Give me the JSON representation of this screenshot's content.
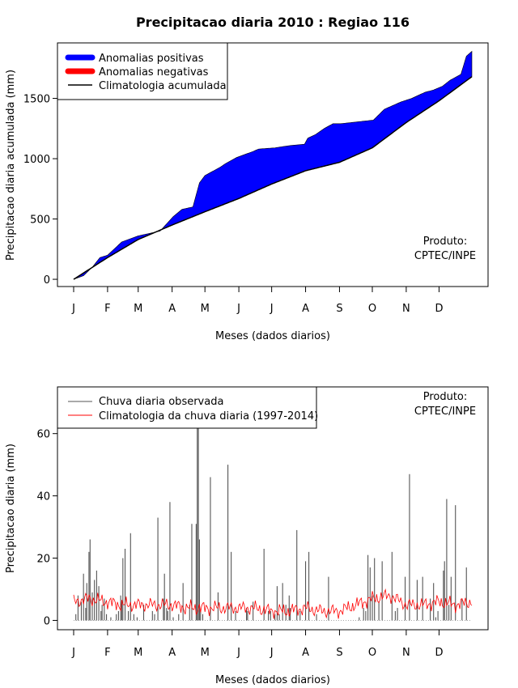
{
  "colors": {
    "positive": "#0000ff",
    "negative": "#ff0000",
    "climatology": "#000000",
    "observed_bar": "#555555",
    "clim_daily_line": "#ff0000"
  },
  "chart_data": [
    {
      "type": "area",
      "title": "Precipitacao diaria 2010 : Regiao 116",
      "xlabel": "Meses (dados diarios)",
      "ylabel": "Precipitacao diaria acumulada (mm)",
      "ylim": [
        -60,
        1960
      ],
      "xlim": [
        1,
        365
      ],
      "yticks": [
        0,
        500,
        1000,
        1500
      ],
      "month_ticks": [
        "J",
        "F",
        "M",
        "A",
        "M",
        "J",
        "J",
        "A",
        "S",
        "O",
        "N",
        "D"
      ],
      "month_days": [
        1,
        32,
        60,
        91,
        121,
        152,
        182,
        213,
        244,
        274,
        305,
        335
      ],
      "legend": [
        "Anomalias positivas",
        "Anomalias negativas",
        "Climatologia acumulada"
      ],
      "legend_position": "top-left",
      "annotation": [
        "Produto:",
        "CPTEC/INPE"
      ],
      "series": [
        {
          "name": "Precipitacao acumulada observada",
          "x": [
            1,
            10,
            18,
            25,
            32,
            45,
            60,
            70,
            80,
            92,
            100,
            110,
            113,
            116,
            121,
            135,
            140,
            150,
            156,
            165,
            170,
            185,
            192,
            200,
            212,
            215,
            222,
            230,
            238,
            245,
            255,
            265,
            275,
            285,
            300,
            310,
            322,
            330,
            338,
            345,
            355,
            360,
            365
          ],
          "y": [
            0,
            30,
            100,
            180,
            200,
            310,
            360,
            380,
            400,
            520,
            580,
            600,
            700,
            800,
            860,
            930,
            960,
            1010,
            1030,
            1060,
            1080,
            1090,
            1100,
            1110,
            1120,
            1170,
            1200,
            1250,
            1290,
            1290,
            1300,
            1310,
            1320,
            1410,
            1470,
            1500,
            1550,
            1570,
            1600,
            1650,
            1700,
            1850,
            1890
          ]
        },
        {
          "name": "Climatologia acumulada",
          "x": [
            1,
            32,
            60,
            91,
            121,
            152,
            182,
            213,
            244,
            274,
            305,
            335,
            365
          ],
          "y": [
            0,
            180,
            330,
            450,
            560,
            670,
            790,
            900,
            970,
            1090,
            1300,
            1480,
            1680
          ]
        }
      ]
    },
    {
      "type": "bar",
      "xlabel": "Meses (dados diarios)",
      "ylabel": "Precipitacao diaria (mm)",
      "ylim": [
        -3,
        75
      ],
      "xlim": [
        1,
        365
      ],
      "yticks": [
        0,
        20,
        40,
        60
      ],
      "month_ticks": [
        "J",
        "F",
        "M",
        "A",
        "M",
        "J",
        "J",
        "A",
        "S",
        "O",
        "N",
        "D"
      ],
      "month_days": [
        1,
        32,
        60,
        91,
        121,
        152,
        182,
        213,
        244,
        274,
        305,
        335
      ],
      "legend": [
        "Chuva diaria observada",
        "Climatologia da chuva diaria (1997-2014)"
      ],
      "legend_position": "top-left",
      "annotation": [
        "Produto:",
        "CPTEC/INPE"
      ],
      "series": [
        {
          "name": "Chuva diaria observada",
          "day": [
            3,
            5,
            8,
            10,
            12,
            13,
            15,
            16,
            18,
            20,
            22,
            24,
            26,
            27,
            29,
            31,
            35,
            40,
            42,
            44,
            45,
            46,
            48,
            51,
            53,
            56,
            59,
            65,
            73,
            75,
            78,
            83,
            84,
            86,
            87,
            89,
            92,
            97,
            101,
            107,
            109,
            113,
            114,
            115,
            116,
            117,
            119,
            126,
            133,
            142,
            145,
            149,
            159,
            160,
            165,
            175,
            179,
            181,
            185,
            187,
            189,
            192,
            195,
            198,
            199,
            205,
            208,
            213,
            216,
            223,
            234,
            262,
            266,
            268,
            270,
            272,
            274,
            276,
            280,
            283,
            292,
            295,
            297,
            304,
            308,
            315,
            320,
            327,
            330,
            332,
            334,
            339,
            340,
            342,
            344,
            346,
            350,
            356,
            360
          ],
          "values": [
            2,
            8,
            6,
            15,
            4,
            12,
            22,
            26,
            9,
            13,
            16,
            11,
            3,
            5,
            7,
            2,
            1,
            2,
            3,
            8,
            6,
            20,
            23,
            3,
            28,
            2,
            1,
            5,
            3,
            2,
            33,
            7,
            15,
            4,
            3,
            38,
            1,
            2,
            12,
            5,
            31,
            31,
            62,
            62,
            26,
            3,
            2,
            46,
            9,
            50,
            22,
            3,
            4,
            3,
            6,
            23,
            3,
            3,
            2,
            11,
            2,
            12,
            5,
            8,
            4,
            29,
            3,
            19,
            22,
            2,
            14,
            1,
            4,
            3,
            21,
            17,
            8,
            20,
            6,
            19,
            22,
            3,
            4,
            14,
            47,
            13,
            14,
            7,
            12,
            1,
            3,
            16,
            19,
            39,
            5,
            14,
            37,
            7,
            17
          ]
        },
        {
          "name": "Climatologia da chuva diaria (1997-2014)",
          "x": [
            1,
            15,
            30,
            45,
            60,
            75,
            90,
            105,
            121,
            135,
            152,
            165,
            182,
            197,
            213,
            228,
            244,
            259,
            274,
            290,
            305,
            320,
            335,
            350,
            365
          ],
          "y": [
            6,
            7,
            6,
            5,
            5,
            5,
            5,
            4,
            4,
            4,
            4,
            4,
            3,
            3,
            4,
            3,
            3,
            5,
            7,
            8,
            5,
            5,
            6,
            5,
            6
          ]
        }
      ]
    }
  ]
}
